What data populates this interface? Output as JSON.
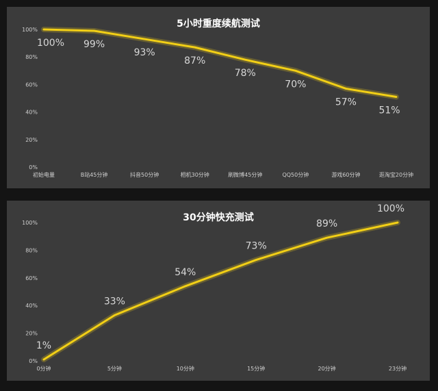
{
  "chart_data": [
    {
      "type": "line",
      "title": "5小时重度续航测试",
      "categories": [
        "初始电量",
        "B站45分钟",
        "抖音50分钟",
        "相机30分钟",
        "刷微博45分钟",
        "QQ50分钟",
        "游戏60分钟",
        "逛淘宝20分钟"
      ],
      "values": [
        100,
        99,
        93,
        87,
        78,
        70,
        57,
        51
      ],
      "data_labels": [
        "100%",
        "99%",
        "93%",
        "87%",
        "78%",
        "70%",
        "57%",
        "51%"
      ],
      "yticks": [
        "0%",
        "20%",
        "40%",
        "60%",
        "80%",
        "100%"
      ],
      "ylim": [
        0,
        100
      ],
      "grid": false,
      "line_color": "#f2cf16"
    },
    {
      "type": "line",
      "title": "30分钟快充测试",
      "categories": [
        "0分钟",
        "5分钟",
        "10分钟",
        "15分钟",
        "20分钟",
        "23分钟"
      ],
      "values": [
        1,
        33,
        54,
        73,
        89,
        100
      ],
      "data_labels": [
        "1%",
        "33%",
        "54%",
        "73%",
        "89%",
        "100%"
      ],
      "yticks": [
        "0%",
        "20%",
        "40%",
        "60%",
        "80%",
        "100%"
      ],
      "ylim": [
        0,
        100
      ],
      "grid": false,
      "line_color": "#f2cf16"
    }
  ]
}
